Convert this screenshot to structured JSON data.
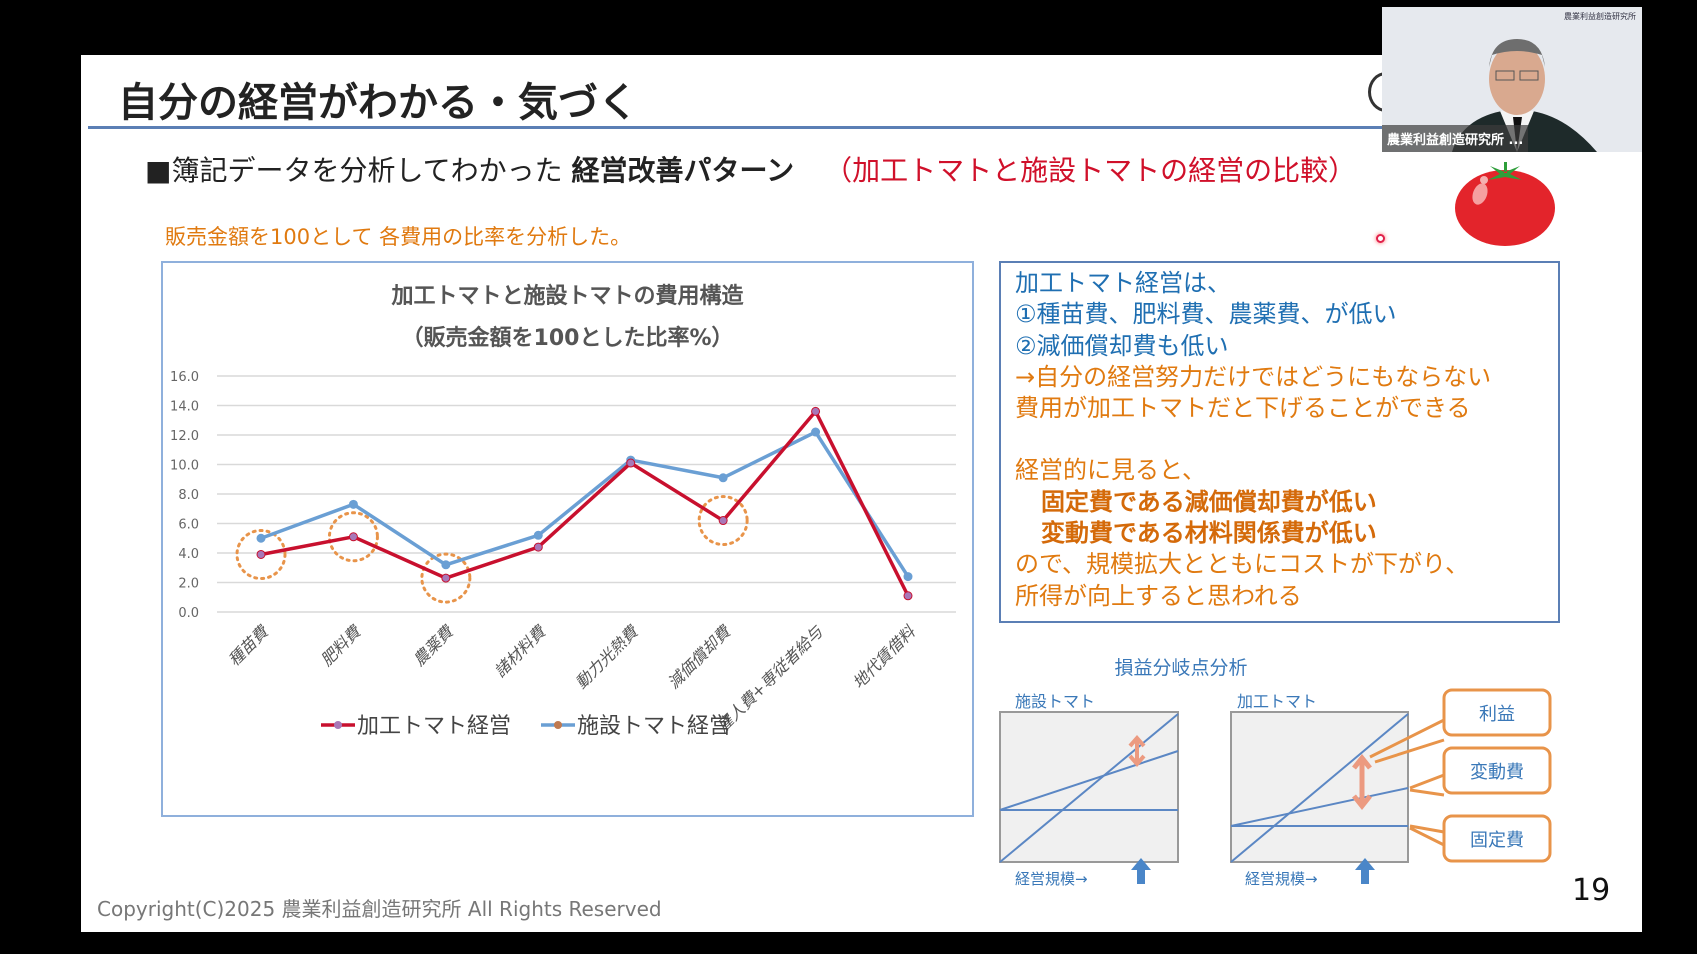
{
  "slide": {
    "title": "自分の経営がわかる・気づく",
    "subtitle_prefix": "■簿記データを分析してわかった",
    "subtitle_bold": "経営改善パターン",
    "subtitle_red": "（加工トマトと施設トマトの経営の比較）",
    "note": "販売金額を100として 各費用の比率を分析した。",
    "page_number": "19",
    "copyright": "Copyright(C)2025  農業利益創造研究所  All Rights Reserved"
  },
  "webcam": {
    "name": "農業利益創造研究所 ...",
    "logo_text": "農業利益創造研究所"
  },
  "textbox": {
    "lines_blue": [
      "加工トマト経営は、",
      "①種苗費、肥料費、農薬費、が低い",
      "②減価償却費も低い"
    ],
    "lines_orange": [
      "→自分の経営努力だけではどうにもならない",
      "費用が加工トマトだと下げることができる"
    ],
    "lead": "経営的に見ると、",
    "bold1": "固定費である減価償却費が低い",
    "bold2": "変動費である材料関係費が低い",
    "tail1": "ので、規模拡大とともにコストが下がり、",
    "tail2": "所得が向上すると思われる"
  },
  "breakeven": {
    "title": "損益分岐点分析",
    "left_label": "施設トマト",
    "right_label": "加工トマト",
    "axis_label": "経営規模→",
    "callouts": [
      "利益",
      "変動費",
      "固定費"
    ]
  },
  "colors": {
    "processing": "#c8102e",
    "greenhouse": "#6a9fd4",
    "highlight": "#e8944a",
    "accent": "#5b7fb5"
  },
  "chart_data": {
    "type": "line",
    "title": "加工トマトと施設トマトの費用構造",
    "subtitle": "（販売金額を100とした比率%）",
    "categories": [
      "種苗費",
      "肥料費",
      "農薬費",
      "諸材料費",
      "動力光熱費",
      "減価償却費",
      "雇人費+専従者給与",
      "地代賃借料"
    ],
    "yticks": [
      "0.0",
      "2.0",
      "4.0",
      "6.0",
      "8.0",
      "10.0",
      "12.0",
      "14.0",
      "16.0"
    ],
    "ylim": [
      0,
      16
    ],
    "grid": true,
    "legend": "bottom",
    "highlighted_categories": [
      "種苗費",
      "肥料費",
      "農薬費",
      "減価償却費"
    ],
    "series": [
      {
        "name": "加工トマト経営",
        "values": [
          3.9,
          5.1,
          2.3,
          4.4,
          10.1,
          6.2,
          13.6,
          1.1
        ]
      },
      {
        "name": "施設トマト経営",
        "values": [
          5.0,
          7.3,
          3.2,
          5.2,
          10.3,
          9.1,
          12.2,
          2.4
        ]
      }
    ]
  }
}
